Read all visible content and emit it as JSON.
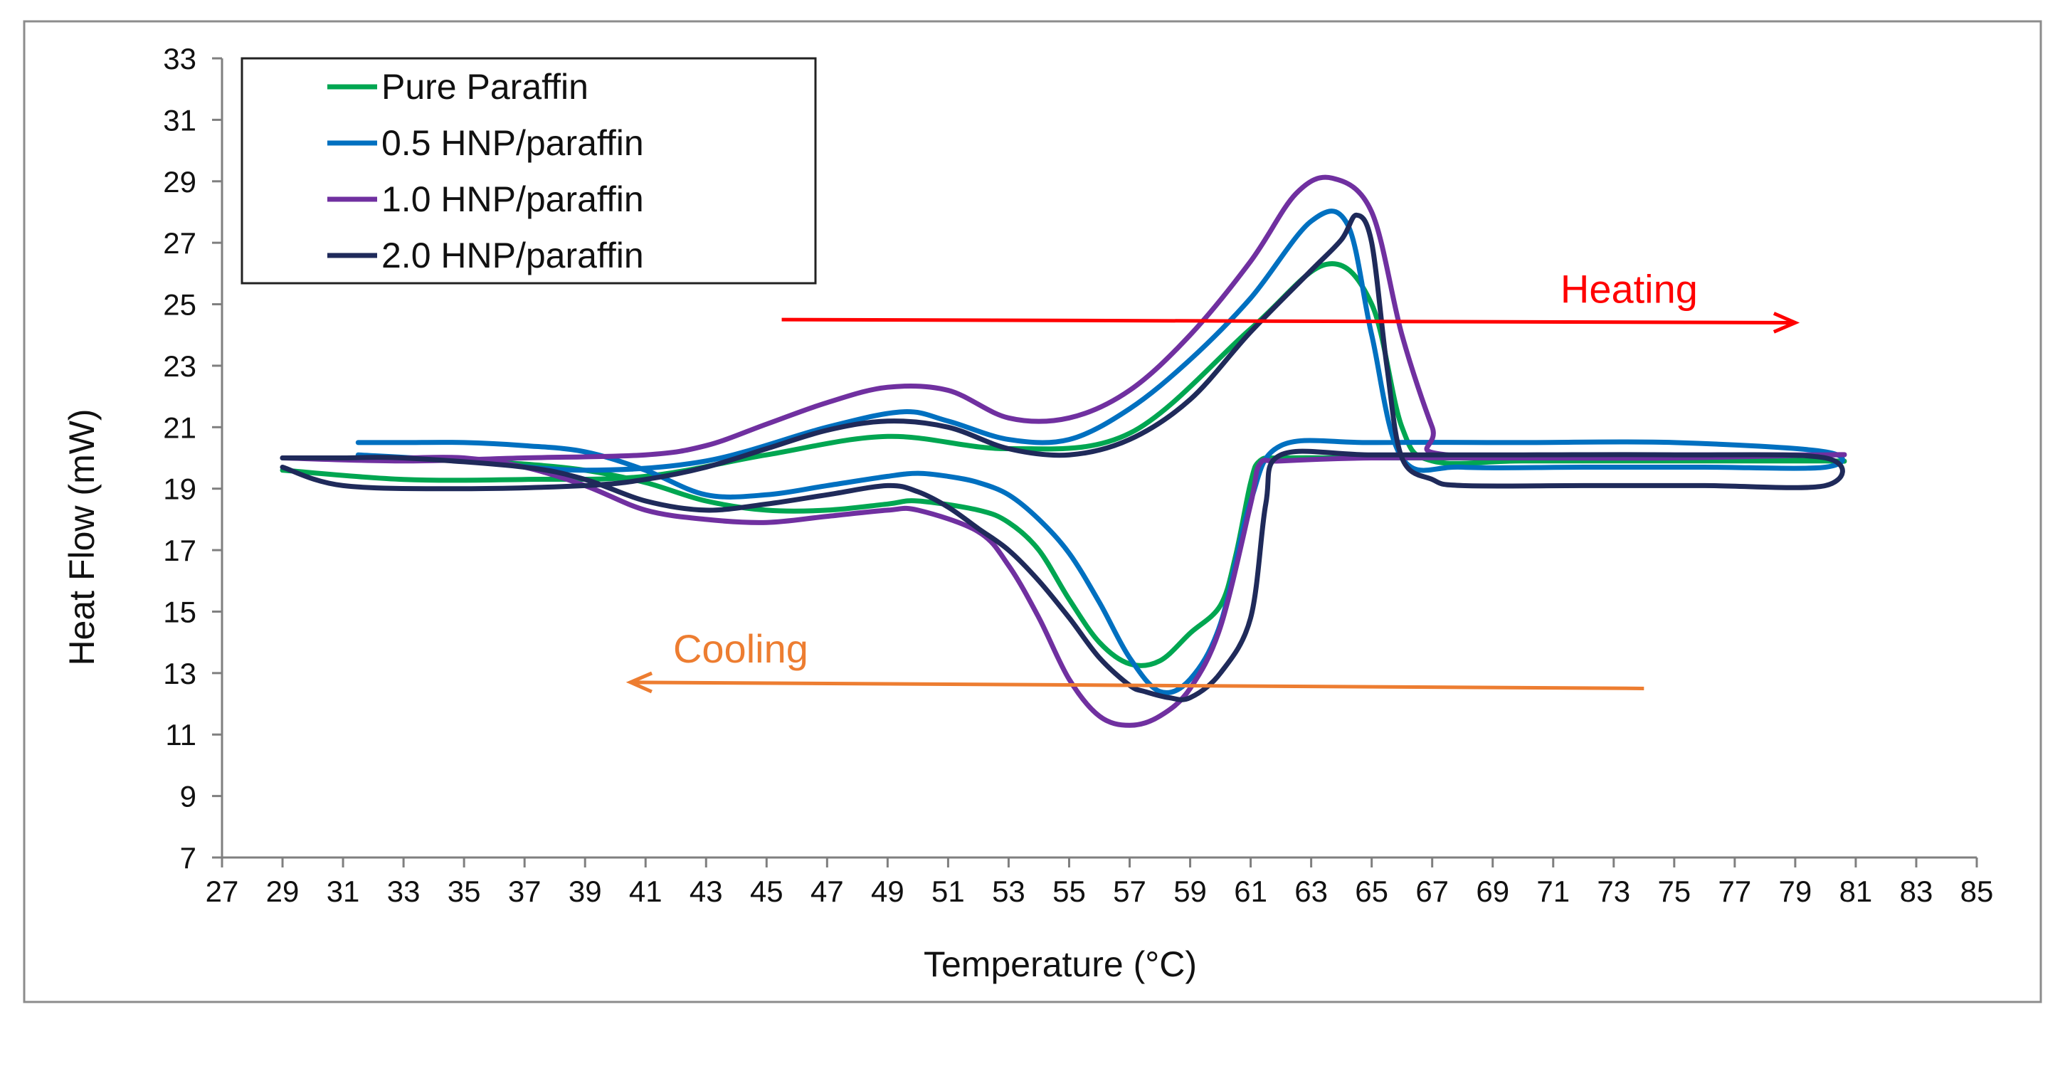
{
  "chart_data": {
    "type": "line",
    "title": "",
    "xlabel": "Temperature (°C)",
    "ylabel": "Heat Flow (mW)",
    "xlim": [
      27,
      85
    ],
    "ylim": [
      7,
      33
    ],
    "xticks": [
      27,
      29,
      31,
      33,
      35,
      37,
      39,
      41,
      43,
      45,
      47,
      49,
      51,
      53,
      55,
      57,
      59,
      61,
      63,
      65,
      67,
      69,
      71,
      73,
      75,
      77,
      79,
      81,
      83,
      85
    ],
    "yticks": [
      7,
      9,
      11,
      13,
      15,
      17,
      19,
      21,
      23,
      25,
      27,
      29,
      31,
      33
    ],
    "grid": false,
    "legend_position": "top-left",
    "series": [
      {
        "name": "Pure Paraffin",
        "color": "#00a651",
        "x": [
          29,
          33,
          37,
          41,
          45,
          49,
          53,
          57,
          61,
          63.5,
          65,
          66,
          67,
          70,
          75,
          80,
          80,
          75,
          70,
          65,
          62,
          61.3,
          61,
          60.5,
          60,
          59,
          58,
          57,
          56,
          55,
          54,
          53,
          52,
          50,
          49,
          47,
          45,
          43,
          41,
          39,
          37,
          35,
          33,
          31,
          29
        ],
        "y": [
          19.6,
          19.3,
          19.3,
          19.4,
          20.1,
          20.7,
          20.3,
          20.8,
          24.2,
          26.3,
          25.0,
          21.0,
          19.9,
          19.9,
          19.9,
          19.9,
          19.9,
          20.0,
          20.0,
          20.0,
          20.0,
          19.9,
          19.2,
          16.8,
          15.2,
          14.3,
          13.4,
          13.3,
          14.0,
          15.4,
          17.0,
          17.9,
          18.3,
          18.6,
          18.5,
          18.3,
          18.3,
          18.6,
          19.2,
          19.6,
          19.8,
          19.9,
          20.0,
          20.0,
          20.0
        ]
      },
      {
        "name": "0.5 HNP/paraffin",
        "color": "#0070c0",
        "x": [
          31.5,
          35,
          39,
          43,
          47,
          49.5,
          51,
          53,
          55,
          57,
          59,
          61,
          63,
          64.2,
          65,
          66,
          68,
          72,
          76,
          80,
          80,
          75,
          70,
          65,
          62,
          61,
          60,
          59,
          58,
          57,
          56,
          55,
          54,
          53,
          52,
          51,
          50,
          49,
          47,
          45,
          43,
          41,
          39,
          37,
          35,
          33,
          31.5
        ],
        "y": [
          20.1,
          19.9,
          19.6,
          19.9,
          21.0,
          21.5,
          21.2,
          20.6,
          20.6,
          21.6,
          23.2,
          25.2,
          27.7,
          27.6,
          24.0,
          20.0,
          19.7,
          19.7,
          19.7,
          19.7,
          20.2,
          20.5,
          20.5,
          20.5,
          20.4,
          18.6,
          14.6,
          12.8,
          12.4,
          13.5,
          15.3,
          16.9,
          18.0,
          18.8,
          19.2,
          19.4,
          19.5,
          19.4,
          19.1,
          18.8,
          18.8,
          19.6,
          20.2,
          20.4,
          20.5,
          20.5,
          20.5
        ]
      },
      {
        "name": "1.0 HNP/paraffin",
        "color": "#7030a0",
        "x": [
          29,
          33,
          37,
          41,
          43,
          45,
          47,
          49,
          51,
          53,
          55,
          57,
          59,
          61,
          62.5,
          63.7,
          65,
          66,
          67,
          67.5,
          75,
          80,
          80,
          75,
          70,
          65,
          62,
          61.3,
          61,
          60,
          59,
          58,
          57,
          56,
          55,
          54,
          53,
          52,
          50,
          49,
          47,
          45,
          43,
          41,
          39,
          37,
          35,
          33,
          31,
          29
        ],
        "y": [
          20.0,
          19.9,
          20.0,
          20.1,
          20.4,
          21.1,
          21.8,
          22.3,
          22.2,
          21.3,
          21.3,
          22.2,
          24.0,
          26.4,
          28.6,
          29.1,
          28.0,
          24.0,
          21.0,
          20.1,
          20.1,
          20.1,
          20.1,
          20.0,
          20.0,
          20.0,
          19.9,
          19.8,
          18.5,
          14.5,
          12.5,
          11.6,
          11.3,
          11.6,
          12.8,
          14.8,
          16.5,
          17.6,
          18.3,
          18.3,
          18.1,
          17.9,
          18.0,
          18.3,
          19.1,
          19.7,
          20.0,
          20.0,
          20.0,
          20.0
        ]
      },
      {
        "name": "2.0 HNP/paraffin",
        "color": "#1f2a5a",
        "x": [
          29,
          31,
          35,
          39,
          41,
          43,
          45,
          47,
          49,
          51,
          53,
          55,
          57,
          59,
          61,
          63,
          64,
          64.5,
          65,
          65.5,
          66,
          67,
          68,
          72,
          76,
          80,
          80,
          75,
          70,
          65,
          62,
          61.5,
          61,
          60,
          59,
          58.3,
          57.5,
          57,
          56,
          55,
          54,
          53,
          52,
          51,
          50,
          49,
          47,
          45,
          43,
          41,
          39,
          37,
          33,
          31,
          29
        ],
        "y": [
          19.7,
          19.1,
          19.0,
          19.1,
          19.3,
          19.7,
          20.3,
          20.9,
          21.2,
          21.0,
          20.3,
          20.1,
          20.6,
          21.9,
          24.1,
          26.1,
          27.1,
          27.9,
          27.0,
          23.0,
          20.0,
          19.3,
          19.1,
          19.1,
          19.1,
          19.1,
          20.0,
          20.1,
          20.1,
          20.1,
          20.1,
          18.5,
          14.8,
          13.0,
          12.2,
          12.2,
          12.4,
          12.6,
          13.5,
          14.8,
          16.0,
          17.0,
          17.7,
          18.4,
          18.9,
          19.1,
          18.8,
          18.5,
          18.3,
          18.6,
          19.3,
          19.7,
          20.0,
          20.0,
          20.0
        ]
      }
    ],
    "annotations": [
      {
        "text": "Heating",
        "color": "#ff0000",
        "arrow_from": [
          45.5,
          24.5
        ],
        "arrow_to": [
          79,
          24.4
        ]
      },
      {
        "text": "Cooling",
        "color": "#ed7d31",
        "arrow_from": [
          74,
          12.5
        ],
        "arrow_to": [
          40.5,
          12.7
        ]
      }
    ]
  }
}
